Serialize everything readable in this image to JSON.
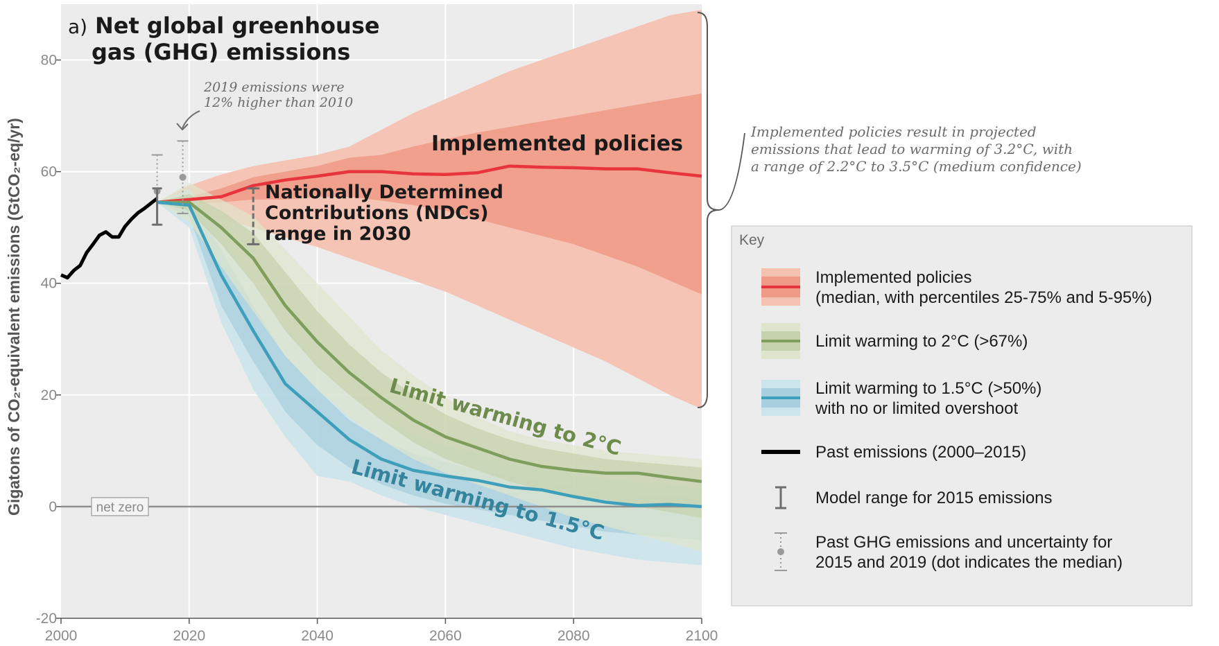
{
  "chart_data": {
    "type": "line",
    "panel_label": "a)",
    "title_lines": [
      "Net global greenhouse",
      "gas (GHG) emissions"
    ],
    "ylabel": "Gigatons of CO₂-equivalent emissions (GtCO₂-eq/yr)",
    "xlabel": "",
    "xlim": [
      2000,
      2100
    ],
    "ylim": [
      -20,
      90
    ],
    "x_ticks": [
      "2000",
      "2020",
      "2040",
      "2060",
      "2080",
      "2100"
    ],
    "y_ticks": [
      "-20",
      "0",
      "20",
      "40",
      "60",
      "80"
    ],
    "grid": "vertical and horizontal",
    "net_zero_label": "net zero",
    "past_emissions": {
      "x": [
        2000,
        2001,
        2002,
        2003,
        2004,
        2005,
        2006,
        2007,
        2008,
        2009,
        2010,
        2011,
        2012,
        2013,
        2014,
        2015
      ],
      "y": [
        41.5,
        41,
        42.3,
        43.2,
        45.5,
        47,
        48.6,
        49.2,
        48.3,
        48.3,
        50.2,
        51.5,
        52.6,
        53.4,
        54.3,
        55.2
      ]
    },
    "implemented_policies": {
      "x": [
        2015,
        2020,
        2025,
        2030,
        2035,
        2040,
        2045,
        2050,
        2055,
        2060,
        2065,
        2070,
        2075,
        2080,
        2085,
        2090,
        2095,
        2100
      ],
      "median": [
        54.5,
        55,
        55.5,
        57.5,
        58.5,
        59.2,
        60,
        60,
        59.6,
        59.5,
        59.8,
        61,
        60.8,
        60.7,
        60.5,
        60.5,
        59.8,
        59.2
      ],
      "p25": [
        54.5,
        54.2,
        54.5,
        55,
        55,
        55.5,
        55.5,
        54.8,
        54,
        53,
        51.5,
        50,
        48.5,
        47,
        45,
        43,
        40.5,
        38
      ],
      "p75": [
        54.5,
        55.5,
        57,
        59,
        60,
        61,
        62.5,
        63,
        64.5,
        65.8,
        67,
        68,
        69,
        70,
        71,
        72,
        73,
        74
      ],
      "p5": [
        54.5,
        53.2,
        51.5,
        50,
        48.2,
        46.5,
        44.5,
        42.5,
        40.5,
        38.5,
        36,
        33.5,
        31,
        28.5,
        26,
        23,
        20,
        17.5
      ],
      "p95": [
        54.5,
        57.5,
        59.5,
        61,
        62,
        63,
        64.5,
        67.5,
        70.5,
        73,
        75.5,
        78,
        80,
        82,
        84,
        86,
        88,
        89
      ]
    },
    "limit_2c": {
      "x": [
        2015,
        2020,
        2025,
        2030,
        2035,
        2040,
        2045,
        2050,
        2055,
        2060,
        2065,
        2070,
        2075,
        2080,
        2085,
        2090,
        2095,
        2100
      ],
      "median": [
        54.5,
        54.5,
        50,
        44.5,
        36,
        29.5,
        24,
        19.5,
        15.5,
        12.5,
        10.5,
        8.5,
        7.2,
        6.5,
        6,
        6,
        5.2,
        4.5
      ],
      "p25": [
        54.5,
        53,
        47,
        40,
        31.5,
        25,
        20,
        15.5,
        11.5,
        8.5,
        6.5,
        4.5,
        3,
        2,
        1.2,
        0,
        -1,
        -2
      ],
      "p75": [
        54.5,
        56,
        53,
        49,
        42,
        35,
        29,
        24,
        20,
        16.5,
        14,
        12,
        10.5,
        9.5,
        8.5,
        8,
        7.5,
        7
      ],
      "p5": [
        54.5,
        51,
        43,
        35,
        27,
        21,
        16,
        12,
        8.5,
        6,
        4,
        2,
        0,
        -2,
        -3.5,
        -5,
        -6.5,
        -8
      ],
      "p95": [
        54.5,
        58,
        55,
        52,
        46,
        40,
        34,
        28,
        23.5,
        19.5,
        16,
        13.5,
        12,
        11,
        10,
        9.5,
        9,
        8.5
      ]
    },
    "limit_15c": {
      "x": [
        2015,
        2020,
        2025,
        2030,
        2035,
        2040,
        2045,
        2050,
        2055,
        2060,
        2065,
        2070,
        2075,
        2080,
        2085,
        2090,
        2095,
        2100
      ],
      "median": [
        54.5,
        54,
        41.5,
        31.5,
        22,
        17,
        12,
        8.5,
        6.5,
        5.5,
        4.7,
        3.5,
        3,
        1.8,
        0.8,
        0.2,
        0.4,
        0
      ],
      "p25": [
        54.5,
        52,
        36,
        26,
        17,
        11,
        7,
        4,
        2,
        0.5,
        -0.5,
        -1.5,
        -2.5,
        -3.5,
        -4.5,
        -5,
        -5.5,
        -6
      ],
      "p75": [
        54.5,
        55.5,
        46,
        36,
        27,
        21,
        15.5,
        12,
        9.5,
        8,
        6.5,
        5.5,
        4.5,
        3.5,
        2.5,
        2,
        1.8,
        1.5
      ],
      "p5": [
        54.5,
        50,
        33,
        21,
        12.5,
        5.5,
        4.5,
        2,
        0,
        -1.5,
        -3,
        -4.5,
        -6,
        -7.5,
        -8.5,
        -9.5,
        -10,
        -10.5
      ],
      "p95": [
        54.5,
        57,
        49,
        40,
        32,
        26,
        20,
        16,
        13,
        11,
        9.5,
        8,
        7,
        6,
        5,
        4.5,
        4,
        3.5
      ]
    },
    "ndc_range_2030": {
      "x": 2030,
      "low": 47,
      "high": 57
    },
    "model_range_2015": {
      "x": 2015,
      "low": 50.5,
      "high": 57
    },
    "past_uncertainty": [
      {
        "x": 2015,
        "median": 56.5,
        "low": 50.5,
        "high": 63
      },
      {
        "x": 2019,
        "median": 59,
        "low": 52.5,
        "high": 65.5
      }
    ],
    "annotations": {
      "callout_2019_lines": [
        "2019 emissions were",
        "12% higher than 2010"
      ],
      "implemented_label": "Implemented policies",
      "ndc_label_lines": [
        "Nationally Determined",
        "Contributions (NDCs)",
        "range in 2030"
      ],
      "label_2c": "Limit warming to 2°C",
      "label_15c": "Limit warming to 1.5°C",
      "brace_note_lines": [
        "Implemented policies result in projected",
        "emissions that lead to warming of 3.2°C, with",
        "a range of 2.2°C to 3.5°C (medium confidence)"
      ]
    },
    "legend": {
      "placement": "right",
      "title": "Key",
      "items": [
        {
          "lines": [
            "Implemented policies",
            "(median, with percentiles 25-75% and 5-95%)"
          ]
        },
        {
          "lines": [
            "Limit warming to 2°C (>67%)"
          ]
        },
        {
          "lines": [
            "Limit warming to 1.5°C (>50%)",
            "with no or limited overshoot"
          ]
        },
        {
          "lines": [
            "Past emissions (2000–2015)"
          ]
        },
        {
          "lines": [
            "Model range for 2015 emissions"
          ]
        },
        {
          "lines": [
            "Past GHG emissions and uncertainty for",
            "2015 and 2019 (dot indicates the median)"
          ]
        }
      ]
    },
    "colors": {
      "implemented_line": "#e8343d",
      "implemented_band_outer": "#f5c2b2",
      "implemented_band_inner": "#ee9a86",
      "green_line": "#7e9e5c",
      "green_band_outer": "#dfe5cc",
      "green_band_inner": "#c5d2ad",
      "blue_line": "#3e9fbb",
      "blue_band_outer": "#cce4ec",
      "blue_band_inner": "#a7cfdd",
      "past_line": "#000000",
      "plot_bg": "#ececec",
      "grid": "#ffffff",
      "text": "#1a1a1a",
      "axis_text": "#8a8a8a",
      "green_text": "#6d8b4a",
      "blue_text": "#35849d",
      "legend_bg": "#ececec"
    }
  }
}
